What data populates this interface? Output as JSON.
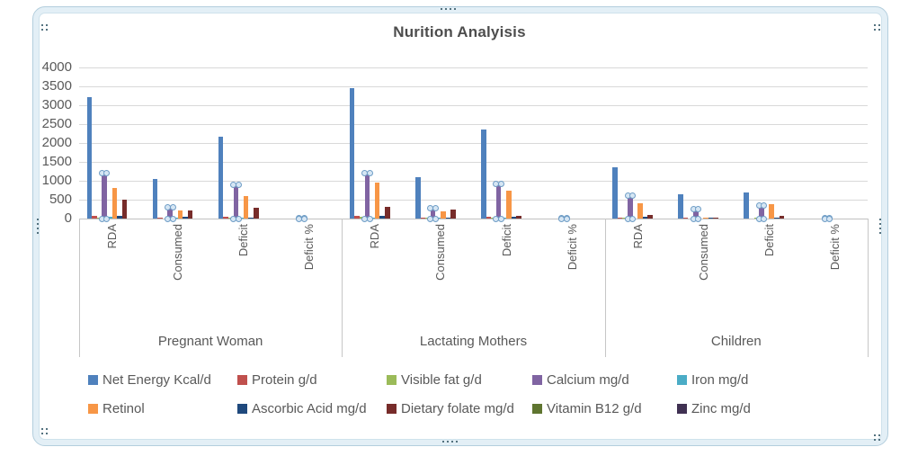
{
  "title": "Nurition Analyisis",
  "y_axis": {
    "tick_labels": [
      "4000",
      "3500",
      "3000",
      "2500",
      "2000",
      "1500",
      "1000",
      "500",
      "0"
    ]
  },
  "chart_data": {
    "type": "bar",
    "title": "Nurition Analyisis",
    "ylim": [
      0,
      4000
    ],
    "y_tick_step": 500,
    "grid": true,
    "legend_position": "bottom",
    "group_labels": [
      "Pregnant Woman",
      "Lactating Mothers",
      "Children"
    ],
    "categories_per_group": [
      "RDA",
      "Consumed",
      "Deficit",
      "Deficit %"
    ],
    "selected_series": "Calcium mg/d",
    "selection_handle_note": "Calcium series is selected; round handles shown at top and bottom of each calcium bar",
    "series": [
      {
        "name": "Net Energy Kcal/d",
        "color": "#4F81BD",
        "values": [
          3225,
          1050,
          2175,
          0.67,
          3450,
          1100,
          2350,
          0.68,
          1350,
          650,
          700,
          0.52
        ]
      },
      {
        "name": "Protein g/d",
        "color": "#C0504D",
        "values": [
          78,
          30,
          48,
          0.62,
          74,
          28,
          46,
          0.62,
          22,
          18,
          4,
          0.18
        ]
      },
      {
        "name": "Visible fat g/d",
        "color": "#9BBB59",
        "values": [
          30,
          12,
          18,
          0.6,
          45,
          14,
          31,
          0.69,
          25,
          10,
          15,
          0.6
        ]
      },
      {
        "name": "Calcium mg/d",
        "color": "#8064A2",
        "values": [
          1200,
          300,
          900,
          0.75,
          1200,
          280,
          920,
          0.77,
          600,
          250,
          350,
          0.58
        ]
      },
      {
        "name": "Iron mg/d",
        "color": "#4BACC6",
        "values": [
          38,
          15,
          23,
          0.61,
          30,
          14,
          16,
          0.53,
          12,
          7,
          5,
          0.42
        ]
      },
      {
        "name": "Retinol",
        "color": "#F79646",
        "values": [
          800,
          210,
          590,
          0.74,
          950,
          200,
          750,
          0.79,
          400,
          20,
          380,
          0.95
        ]
      },
      {
        "name": "Ascorbic Acid mg/d",
        "color": "#1F497D",
        "values": [
          60,
          40,
          20,
          0.33,
          80,
          35,
          45,
          0.56,
          40,
          25,
          15,
          0.38
        ]
      },
      {
        "name": "Dietary folate mg/d",
        "color": "#772C2A",
        "values": [
          500,
          220,
          280,
          0.56,
          300,
          230,
          70,
          0.23,
          100,
          20,
          80,
          0.8
        ]
      },
      {
        "name": "Vitamin B12 g/d",
        "color": "#5F7530",
        "values": [
          1,
          0.5,
          0.5,
          0.5,
          1.5,
          0.4,
          1.1,
          0.73,
          0.2,
          0.1,
          0.1,
          0.5
        ]
      },
      {
        "name": "Zinc mg/d",
        "color": "#403152",
        "values": [
          12,
          7,
          5,
          0.42,
          12,
          6,
          6,
          0.5,
          5,
          3,
          2,
          0.4
        ]
      }
    ]
  },
  "frame": {
    "selected": true,
    "handle_color": "#54727f"
  }
}
